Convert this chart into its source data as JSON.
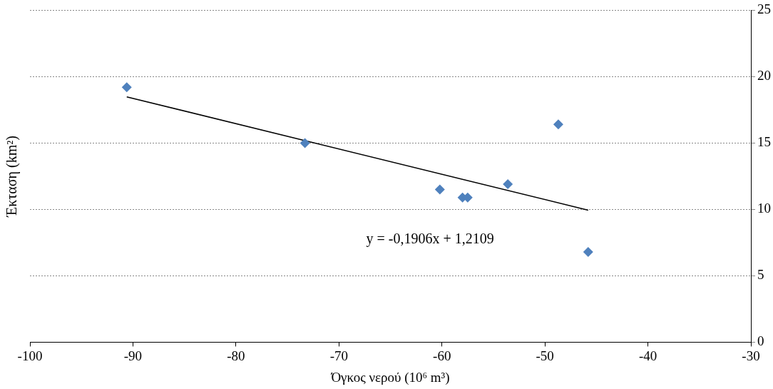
{
  "chart_data": {
    "type": "scatter",
    "xlabel": "Όγκος νερού (10⁶ m³)",
    "ylabel": "Έκταση (km²)",
    "xlim": [
      -100,
      -30
    ],
    "xticks": [
      -100,
      -90,
      -80,
      -70,
      -60,
      -50,
      -40,
      -30
    ],
    "ylim": [
      0,
      25
    ],
    "yticks": [
      0,
      5,
      10,
      15,
      20,
      25
    ],
    "grid": "y",
    "legend": false,
    "marker": "diamond",
    "series": [
      {
        "color": "#4f81bd",
        "x": [
          -90.6,
          -73.3,
          -60.2,
          -58,
          -57.5,
          -53.6,
          -48.7,
          -45.8
        ],
        "values": [
          19.2,
          15,
          11.5,
          10.9,
          10.9,
          11.9,
          16.4,
          6.8
        ]
      },
      {
        "type": "line",
        "color": "#000000",
        "marker": "none",
        "x": [
          -90.6,
          -45.8
        ],
        "values": [
          18.48,
          9.94
        ]
      }
    ],
    "annotations": [
      "y = -0,1906x + 1,2109"
    ]
  }
}
